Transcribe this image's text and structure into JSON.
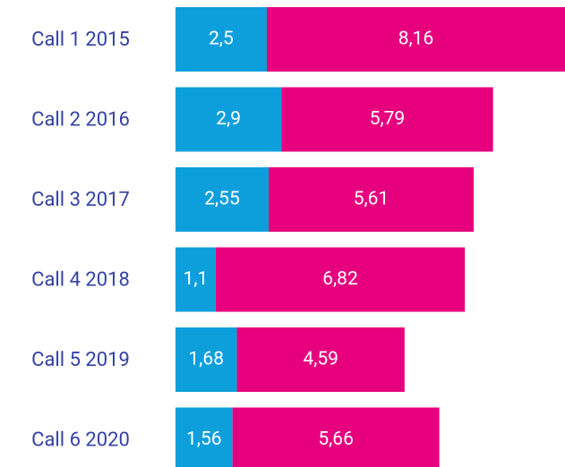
{
  "chart_data": {
    "type": "stacked-bar-horizontal",
    "categories": [
      "Call 1 2015",
      "Call 2 2016",
      "Call 3 2017",
      "Call 4 2018",
      "Call 5 2019",
      "Call 6 2020"
    ],
    "series": [
      {
        "color": "#0d9fdc",
        "values": [
          2.5,
          2.9,
          2.55,
          1.1,
          1.68,
          1.56
        ],
        "value_labels": [
          "2,5",
          "2,9",
          "2,55",
          "1,1",
          "1,68",
          "1,56"
        ]
      },
      {
        "color": "#e6007e",
        "values": [
          8.16,
          5.79,
          5.61,
          6.82,
          4.59,
          5.66
        ],
        "value_labels": [
          "8,16",
          "5,79",
          "5,61",
          "6,82",
          "4,59",
          "5,66"
        ]
      }
    ]
  }
}
